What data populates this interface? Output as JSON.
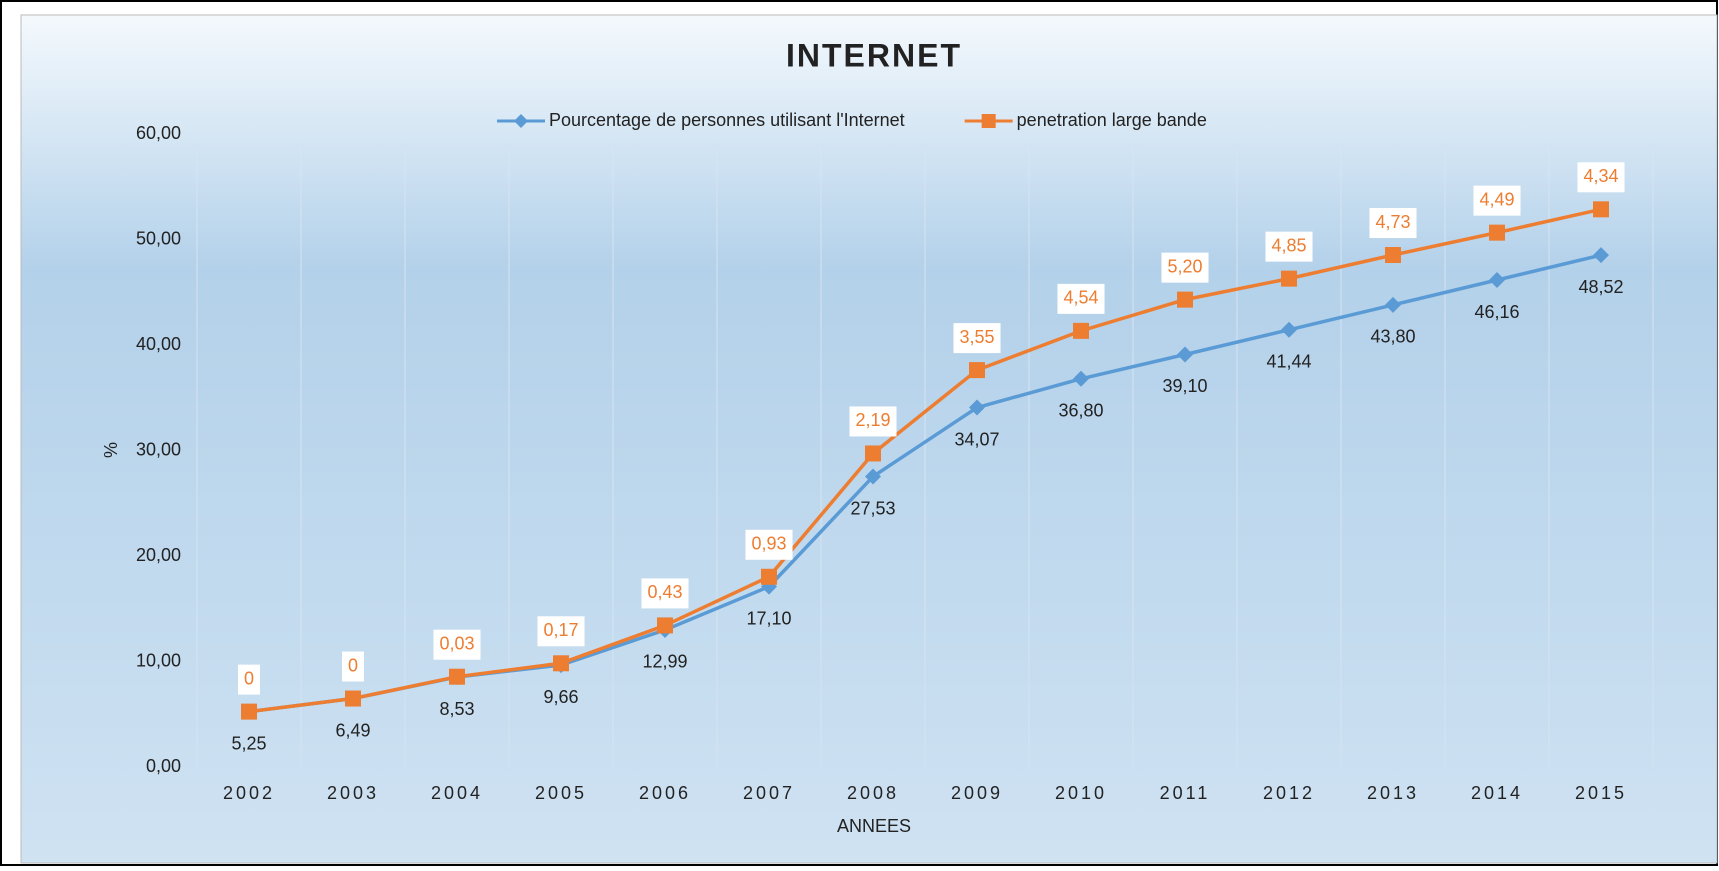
{
  "chart_data": {
    "type": "line",
    "stacked": true,
    "title": "INTERNET",
    "x_label": "ANNEES",
    "y_label": "%",
    "categories": [
      "2002",
      "2003",
      "2004",
      "2005",
      "2006",
      "2007",
      "2008",
      "2009",
      "2010",
      "2011",
      "2012",
      "2013",
      "2014",
      "2015"
    ],
    "series": [
      {
        "name": "Pourcentage de personnes utilisant l'Internet",
        "color": "#5b9bd5",
        "marker": "diamond",
        "values": [
          5.25,
          6.49,
          8.53,
          9.66,
          12.99,
          17.1,
          27.53,
          34.07,
          36.8,
          39.1,
          41.44,
          43.8,
          46.16,
          48.52
        ],
        "value_labels": [
          "5,25",
          "6,49",
          "8,53",
          "9,66",
          "12,99",
          "17,10",
          "27,53",
          "34,07",
          "36,80",
          "39,10",
          "41,44",
          "43,80",
          "46,16",
          "48,52"
        ]
      },
      {
        "name": "penetration large bande",
        "color": "#ed7d31",
        "marker": "square",
        "values": [
          0,
          0,
          0.03,
          0.17,
          0.43,
          0.93,
          2.19,
          3.55,
          4.54,
          5.2,
          4.85,
          4.73,
          4.49,
          4.34
        ],
        "value_labels": [
          "0",
          "0",
          "0,03",
          "0,17",
          "0,43",
          "0,93",
          "2,19",
          "3,55",
          "4,54",
          "5,20",
          "4,85",
          "4,73",
          "4,49",
          "4,34"
        ]
      }
    ],
    "ylim": [
      0,
      60
    ],
    "yticks": [
      {
        "value": 0,
        "label": "0,00"
      },
      {
        "value": 10,
        "label": "10,00"
      },
      {
        "value": 20,
        "label": "20,00"
      },
      {
        "value": 30,
        "label": "30,00"
      },
      {
        "value": 40,
        "label": "40,00"
      },
      {
        "value": 50,
        "label": "50,00"
      },
      {
        "value": 60,
        "label": "60,00"
      }
    ],
    "legend": "top"
  }
}
